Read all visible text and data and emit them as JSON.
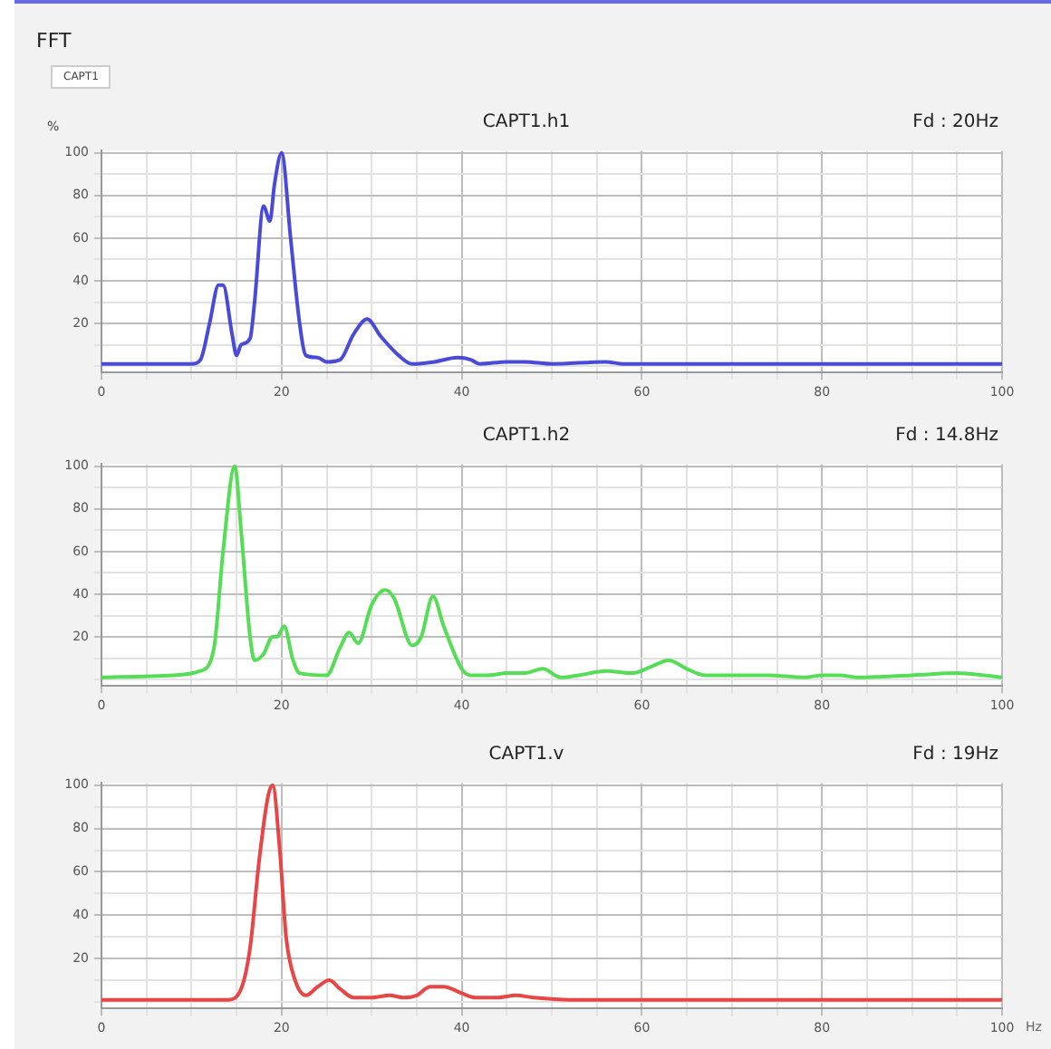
{
  "chart_data": [
    {
      "type": "line",
      "title": "CAPT1.h1",
      "ylabel": "%",
      "annotations": [
        "FFT",
        "CAPT1",
        "Fd : 20Hz"
      ],
      "x": [
        0,
        9,
        10,
        11,
        12,
        13,
        13.5,
        14.5,
        15,
        15.5,
        16.5,
        17,
        18,
        18.7,
        19.2,
        20,
        21,
        22,
        22.7,
        24,
        25,
        26.5,
        28,
        29.5,
        31,
        33,
        34.5,
        37,
        39.5,
        41,
        42,
        45,
        47,
        50,
        56,
        58,
        100
      ],
      "series": [
        {
          "color": "#4a4ad8",
          "values": [
            1,
            1,
            1,
            3,
            20,
            38,
            38,
            15,
            5,
            10,
            13,
            30,
            75,
            68,
            85,
            100,
            60,
            20,
            5,
            4,
            2,
            3,
            15,
            22,
            14,
            5,
            1,
            2,
            4,
            3,
            1,
            2,
            2,
            1,
            2,
            1,
            1
          ]
        }
      ],
      "xlim": [
        0,
        100
      ],
      "ylim": [
        -3,
        101
      ],
      "xticks": [
        0,
        {
          "value": 5,
          "label": null
        },
        {
          "value": 10,
          "label": null
        },
        {
          "value": 15,
          "label": null
        },
        20,
        {
          "value": 25,
          "label": null
        },
        {
          "value": 30,
          "label": null
        },
        {
          "value": 35,
          "label": null
        },
        40,
        {
          "value": 45,
          "label": null
        },
        {
          "value": 50,
          "label": null
        },
        {
          "value": 55,
          "label": null
        },
        60,
        {
          "value": 65,
          "label": null
        },
        {
          "value": 70,
          "label": null
        },
        {
          "value": 75,
          "label": null
        },
        80,
        {
          "value": 85,
          "label": null
        },
        {
          "value": 90,
          "label": null
        },
        {
          "value": 95,
          "label": null
        },
        100
      ],
      "yticks": [
        {
          "value": 0,
          "label": null
        },
        {
          "value": 10,
          "label": null
        },
        20,
        {
          "value": 30,
          "label": null
        },
        40,
        {
          "value": 50,
          "label": null
        },
        60,
        {
          "value": 70,
          "label": null
        },
        80,
        {
          "value": 90,
          "label": null
        },
        100
      ],
      "grid": true,
      "legend": false,
      "marker": "none",
      "line_style": "solid"
    },
    {
      "type": "line",
      "title": "CAPT1.h2",
      "annotations": [
        "Fd : 14.8Hz"
      ],
      "x": [
        0,
        8,
        11,
        12.5,
        13.5,
        14.8,
        15.5,
        16.5,
        17,
        18,
        19,
        19.5,
        20.3,
        21.2,
        22,
        25,
        26.5,
        27.5,
        28.5,
        30,
        31.5,
        32.5,
        34.5,
        35.5,
        36.8,
        38,
        40,
        41,
        43,
        45,
        47,
        49,
        51,
        53,
        56,
        59,
        61,
        63,
        65,
        67,
        70,
        74,
        78,
        80,
        82,
        84,
        90,
        95,
        98,
        100
      ],
      "series": [
        {
          "color": "#55dd55",
          "values": [
            1,
            2,
            4,
            15,
            60,
            100,
            70,
            20,
            9,
            12,
            20,
            20,
            25,
            10,
            3,
            2,
            15,
            22,
            17,
            35,
            42,
            38,
            16,
            20,
            39,
            25,
            5,
            2,
            2,
            3,
            3,
            5,
            1,
            2,
            4,
            3,
            6,
            9,
            5,
            2,
            2,
            2,
            1,
            2,
            2,
            1,
            2,
            3,
            2,
            1
          ]
        }
      ],
      "xlim": [
        0,
        100
      ],
      "ylim": [
        -3,
        101
      ],
      "xticks": [
        0,
        {
          "value": 5,
          "label": null
        },
        {
          "value": 10,
          "label": null
        },
        {
          "value": 15,
          "label": null
        },
        20,
        {
          "value": 25,
          "label": null
        },
        {
          "value": 30,
          "label": null
        },
        {
          "value": 35,
          "label": null
        },
        40,
        {
          "value": 45,
          "label": null
        },
        {
          "value": 50,
          "label": null
        },
        {
          "value": 55,
          "label": null
        },
        60,
        {
          "value": 65,
          "label": null
        },
        {
          "value": 70,
          "label": null
        },
        {
          "value": 75,
          "label": null
        },
        80,
        {
          "value": 85,
          "label": null
        },
        {
          "value": 90,
          "label": null
        },
        {
          "value": 95,
          "label": null
        },
        100
      ],
      "yticks": [
        {
          "value": 0,
          "label": null
        },
        {
          "value": 10,
          "label": null
        },
        20,
        {
          "value": 30,
          "label": null
        },
        40,
        {
          "value": 50,
          "label": null
        },
        60,
        {
          "value": 70,
          "label": null
        },
        80,
        {
          "value": 90,
          "label": null
        },
        100
      ],
      "grid": true,
      "legend": false,
      "marker": "none",
      "line_style": "solid"
    },
    {
      "type": "line",
      "title": "CAPT1.v",
      "xlabel": "Hz",
      "annotations": [
        "Fd : 19Hz"
      ],
      "x": [
        0,
        14,
        15.5,
        16.5,
        17.5,
        18.5,
        19,
        19.8,
        20.5,
        21.5,
        22.7,
        24,
        25.3,
        26.5,
        28,
        30,
        32,
        33.5,
        35,
        36.5,
        38,
        40,
        41.5,
        44,
        46,
        48,
        52,
        100
      ],
      "series": [
        {
          "color": "#e84545",
          "values": [
            1,
            1,
            6,
            25,
            65,
            95,
            100,
            70,
            30,
            10,
            3,
            7,
            10,
            6,
            2,
            2,
            3,
            2,
            3,
            7,
            7,
            4,
            2,
            2,
            3,
            2,
            1,
            1
          ]
        }
      ],
      "xlim": [
        0,
        100
      ],
      "ylim": [
        -3,
        101
      ],
      "xticks": [
        0,
        {
          "value": 5,
          "label": null
        },
        {
          "value": 10,
          "label": null
        },
        {
          "value": 15,
          "label": null
        },
        20,
        {
          "value": 25,
          "label": null
        },
        {
          "value": 30,
          "label": null
        },
        {
          "value": 35,
          "label": null
        },
        40,
        {
          "value": 45,
          "label": null
        },
        {
          "value": 50,
          "label": null
        },
        {
          "value": 55,
          "label": null
        },
        60,
        {
          "value": 65,
          "label": null
        },
        {
          "value": 70,
          "label": null
        },
        {
          "value": 75,
          "label": null
        },
        80,
        {
          "value": 85,
          "label": null
        },
        {
          "value": 90,
          "label": null
        },
        {
          "value": 95,
          "label": null
        },
        100
      ],
      "yticks": [
        {
          "value": 0,
          "label": null
        },
        {
          "value": 10,
          "label": null
        },
        20,
        {
          "value": 30,
          "label": null
        },
        40,
        {
          "value": 50,
          "label": null
        },
        60,
        {
          "value": 70,
          "label": null
        },
        80,
        {
          "value": 90,
          "label": null
        },
        100
      ],
      "grid": true,
      "legend": false,
      "marker": "none",
      "line_style": "solid"
    }
  ]
}
